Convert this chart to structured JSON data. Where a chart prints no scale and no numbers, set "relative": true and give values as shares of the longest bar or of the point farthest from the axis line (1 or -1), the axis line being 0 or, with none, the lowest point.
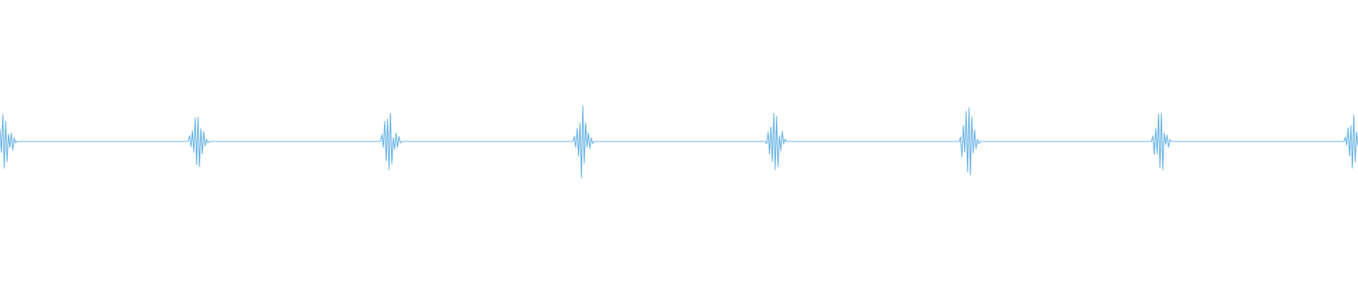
{
  "chart_data": {
    "type": "line",
    "relative": true,
    "color": "#5dade2",
    "categories": [
      null,
      null,
      null,
      null,
      null,
      null,
      null,
      null,
      null,
      null,
      null,
      null,
      null,
      null,
      null,
      null,
      null,
      null,
      null,
      null,
      null,
      null,
      null,
      null,
      null,
      null,
      null,
      null,
      null,
      null,
      null,
      null,
      null,
      null,
      null,
      null,
      null,
      null,
      null,
      null,
      null,
      null,
      null,
      null,
      null,
      null,
      null,
      null,
      null,
      null,
      null,
      null,
      null,
      null,
      null,
      null,
      null,
      null,
      null,
      null,
      null,
      null,
      null,
      null,
      null,
      null,
      null,
      null,
      null,
      null,
      null,
      null,
      null,
      null,
      null,
      null,
      null,
      null,
      null,
      null,
      null,
      null,
      null,
      null,
      null,
      null,
      null,
      null,
      null,
      null,
      null,
      null,
      null,
      null,
      null,
      null,
      null,
      null,
      null,
      null,
      null,
      null,
      null,
      null,
      null,
      null,
      null,
      null,
      null,
      null,
      null,
      null,
      null,
      null,
      null,
      null,
      null,
      null,
      null,
      null,
      null,
      null,
      null,
      null,
      null,
      null,
      null,
      null,
      null,
      null,
      null,
      null,
      null,
      null,
      null,
      null,
      null,
      null,
      null,
      null,
      null,
      null,
      null,
      null,
      null,
      null,
      null,
      null,
      null,
      null,
      null,
      null,
      null,
      null,
      null,
      null,
      null,
      null,
      null,
      null,
      null,
      null,
      null,
      null,
      null,
      null,
      null,
      null,
      null,
      null,
      null,
      null,
      null,
      null,
      null,
      null,
      null,
      null,
      null,
      null,
      null,
      null,
      null,
      null,
      null,
      null,
      null,
      null,
      null,
      null,
      null,
      null,
      null,
      null,
      null,
      null,
      null,
      null,
      null,
      null,
      null,
      null,
      null,
      null,
      null,
      null,
      null,
      null,
      null,
      null,
      null,
      null,
      null,
      null,
      null,
      null,
      null,
      null,
      null,
      null,
      null,
      null,
      null,
      null,
      null,
      null,
      null,
      null,
      null,
      null,
      null,
      null,
      null,
      null,
      null,
      null,
      null,
      null,
      null,
      null,
      null,
      null,
      null,
      null,
      null,
      null,
      null,
      null,
      null,
      null,
      null,
      null,
      null,
      null,
      null,
      null,
      null,
      null,
      null,
      null,
      null,
      null,
      null,
      null,
      null,
      null,
      null,
      null,
      null,
      null,
      null,
      null,
      null,
      null,
      null,
      null,
      null,
      null,
      null,
      null,
      null,
      null,
      null,
      null,
      null,
      null,
      null,
      null,
      null,
      null,
      null,
      null,
      null,
      null,
      null,
      null,
      null,
      null,
      null,
      null,
      null,
      null,
      null,
      null,
      null,
      null,
      null,
      null,
      null,
      null,
      null,
      null,
      null,
      null,
      null,
      null,
      null,
      null,
      null,
      null,
      null,
      null,
      null,
      null,
      null,
      null,
      null,
      null,
      null,
      null,
      null,
      null,
      null,
      null,
      null,
      null,
      null,
      null,
      null,
      null,
      null,
      null,
      null,
      null,
      null,
      null,
      null,
      null,
      null,
      null,
      null,
      null,
      null,
      null,
      null,
      null,
      null,
      null,
      null,
      null,
      null,
      null,
      null,
      null,
      null,
      null,
      null,
      null,
      null,
      null,
      null,
      null,
      null,
      null,
      null,
      null,
      null,
      null,
      null,
      null,
      null,
      null,
      null,
      null,
      null,
      null,
      null,
      null,
      null,
      null,
      null,
      null,
      null,
      null,
      null,
      null,
      null,
      null,
      null,
      null,
      null,
      null,
      null,
      null,
      null,
      null,
      null,
      null,
      null,
      null,
      null,
      null,
      null,
      null,
      null,
      null,
      null,
      null,
      null,
      null,
      null,
      null,
      null,
      null,
      null,
      null,
      null,
      null,
      null,
      null,
      null,
      null,
      null,
      null,
      null,
      null,
      null,
      null,
      null,
      null,
      null,
      null,
      null,
      null,
      null,
      null,
      null,
      null,
      null,
      null,
      null,
      null,
      null,
      null,
      null,
      null,
      null,
      null,
      null,
      null,
      null,
      null,
      null,
      null,
      null,
      null,
      null,
      null,
      null,
      null,
      null,
      null,
      null,
      null,
      null,
      null,
      null,
      null,
      null,
      null,
      null,
      null,
      null,
      null,
      null,
      null,
      null,
      null,
      null,
      null,
      null,
      null,
      null,
      null,
      null,
      null,
      null,
      null,
      null,
      null,
      null,
      null,
      null,
      null,
      null,
      null,
      null,
      null,
      null,
      null,
      null,
      null,
      null,
      null,
      null,
      null,
      null,
      null,
      null,
      null,
      null,
      null,
      null,
      null,
      null,
      null,
      null,
      null,
      null,
      null,
      null,
      null,
      null,
      null,
      null,
      null,
      null,
      null,
      null,
      null,
      null,
      null,
      null,
      null,
      null,
      null,
      null,
      null,
      null,
      null,
      null,
      null,
      null,
      null,
      null,
      null,
      null,
      null,
      null,
      null,
      null,
      null,
      null,
      null,
      null,
      null,
      null,
      null,
      null,
      null,
      null,
      null,
      null,
      null,
      null,
      null,
      null,
      null,
      null,
      null,
      null,
      null,
      null,
      null,
      null,
      null,
      null,
      null,
      null,
      null,
      null,
      null,
      null,
      null,
      null,
      null,
      null,
      null,
      null,
      null,
      null,
      null,
      null,
      null,
      null,
      null,
      null,
      null,
      null,
      null,
      null,
      null,
      null,
      null,
      null,
      null,
      null,
      null,
      null,
      null,
      null,
      null,
      null,
      null,
      null,
      null,
      null,
      null,
      null,
      null,
      null,
      null,
      null,
      null,
      null,
      null,
      null,
      null,
      null,
      null,
      null,
      null,
      null,
      null,
      null,
      null,
      null,
      null,
      null,
      null,
      null,
      null,
      null,
      null,
      null,
      null,
      null,
      null,
      null,
      null,
      null,
      null,
      null,
      null,
      null,
      null,
      null,
      null,
      null,
      null,
      null,
      null,
      null,
      null,
      null,
      null,
      null,
      null,
      null,
      null,
      null,
      null,
      null,
      null,
      null,
      null,
      null,
      null,
      null,
      null,
      null,
      null,
      null,
      null,
      null,
      null,
      null,
      null,
      null,
      null,
      null,
      null,
      null,
      null,
      null,
      null,
      null,
      null,
      null,
      null,
      null,
      null,
      null,
      null,
      null,
      null,
      null,
      null,
      null,
      null,
      null,
      null,
      null,
      null,
      null,
      null,
      null,
      null,
      null,
      null,
      null,
      null,
      null,
      null,
      null,
      null,
      null,
      null,
      null,
      null,
      null,
      null,
      null,
      null,
      null,
      null,
      null,
      null,
      null,
      null,
      null,
      null,
      null,
      null,
      null,
      null,
      null,
      null,
      null,
      null,
      null,
      null,
      null,
      null,
      null,
      null,
      null,
      null,
      null,
      null,
      null,
      null,
      null,
      null,
      null,
      null,
      null,
      null,
      null,
      null,
      null,
      null,
      null,
      null,
      null,
      null,
      null,
      null,
      null,
      null,
      null,
      null,
      null,
      null,
      null,
      null,
      null,
      null,
      null,
      null,
      null,
      null,
      null,
      null,
      null,
      null,
      null,
      null,
      null,
      null,
      null,
      null,
      null,
      null,
      null,
      null,
      null,
      null,
      null,
      null,
      null,
      null,
      null,
      null,
      null,
      null,
      null,
      null,
      null,
      null,
      null,
      null,
      null,
      null,
      null,
      null,
      null,
      null,
      null,
      null,
      null,
      null,
      null,
      null,
      null,
      null,
      null,
      null,
      null,
      null,
      null,
      null,
      null,
      null,
      null,
      null,
      null,
      null,
      null,
      null,
      null,
      null,
      null,
      null,
      null,
      null,
      null,
      null,
      null,
      null,
      null,
      null,
      null,
      null,
      null,
      null,
      null,
      null,
      null,
      null,
      null,
      null,
      null,
      null,
      null,
      null,
      null,
      null,
      null,
      null,
      null,
      null,
      null,
      null,
      null,
      null,
      null,
      null,
      null,
      null,
      null,
      null,
      null,
      null,
      null,
      null,
      null,
      null,
      null,
      null,
      null,
      null,
      null,
      null,
      null,
      null,
      null,
      null,
      null,
      null,
      null,
      null,
      null,
      null,
      null,
      null,
      null,
      null,
      null,
      null,
      null,
      null,
      null,
      null,
      null,
      null,
      null,
      null,
      null,
      null,
      null,
      null,
      null,
      null,
      null,
      null,
      null,
      null,
      null,
      null,
      null,
      null,
      null,
      null,
      null,
      null,
      null,
      null,
      null,
      null,
      null
    ],
    "values": [
      0.67,
      0.35,
      0.88,
      0.13,
      0.78,
      0.22,
      0.6,
      0.42,
      0.62,
      0.38,
      0.55,
      0.48,
      0.5,
      0.5,
      0.5,
      0.5,
      0.5,
      0.5,
      0.5,
      0.5,
      0.5,
      0.5,
      0.5,
      0.5,
      0.5,
      0.5,
      0.5,
      0.5,
      0.5,
      0.5,
      0.5,
      0.5,
      0.5,
      0.5,
      0.5,
      0.5,
      0.5,
      0.5,
      0.5,
      0.5,
      0.5,
      0.5,
      0.5,
      0.5,
      0.5,
      0.5,
      0.5,
      0.5,
      0.5,
      0.5,
      0.5,
      0.5,
      0.5,
      0.5,
      0.5,
      0.5,
      0.5,
      0.5,
      0.5,
      0.5,
      0.5,
      0.5,
      0.5,
      0.5,
      0.5,
      0.5,
      0.5,
      0.5,
      0.5,
      0.5,
      0.5,
      0.5,
      0.5,
      0.5,
      0.5,
      0.5,
      0.5,
      0.5,
      0.5,
      0.5,
      0.5,
      0.5,
      0.5,
      0.5,
      0.5,
      0.5,
      0.5,
      0.5,
      0.5,
      0.5,
      0.5,
      0.5,
      0.5,
      0.5,
      0.5,
      0.5,
      0.5,
      0.5,
      0.5,
      0.5,
      0.5,
      0.5,
      0.5,
      0.5,
      0.5,
      0.5,
      0.5,
      0.5,
      0.5,
      0.5,
      0.5,
      0.5,
      0.5,
      0.5,
      0.5,
      0.5,
      0.5,
      0.5,
      0.5,
      0.5,
      0.5,
      0.5,
      0.5,
      0.5,
      0.5,
      0.5,
      0.5,
      0.5,
      0.5,
      0.5,
      0.5,
      0.5,
      0.5,
      0.5,
      0.58,
      0.43,
      0.65,
      0.35,
      0.83,
      0.18,
      0.84,
      0.15,
      0.68,
      0.33,
      0.64,
      0.44,
      0.53,
      0.48,
      0.5,
      0.5,
      0.5,
      0.5,
      0.5,
      0.5,
      0.5,
      0.5,
      0.5,
      0.5,
      0.5,
      0.5,
      0.5,
      0.5,
      0.5,
      0.5,
      0.5,
      0.5,
      0.5,
      0.5,
      0.5,
      0.5,
      0.5,
      0.5,
      0.5,
      0.5,
      0.5,
      0.5,
      0.5,
      0.5,
      0.5,
      0.5,
      0.5,
      0.5,
      0.5,
      0.5,
      0.5,
      0.5,
      0.5,
      0.5,
      0.5,
      0.5,
      0.5,
      0.5,
      0.5,
      0.5,
      0.5,
      0.5,
      0.5,
      0.5,
      0.5,
      0.5,
      0.5,
      0.5,
      0.5,
      0.5,
      0.5,
      0.5,
      0.5,
      0.5,
      0.5,
      0.5,
      0.5,
      0.5,
      0.5,
      0.5,
      0.5,
      0.5,
      0.5,
      0.5,
      0.5,
      0.5,
      0.5,
      0.5,
      0.5,
      0.5,
      0.5,
      0.5,
      0.5,
      0.5,
      0.5,
      0.5,
      0.5,
      0.5,
      0.5,
      0.5,
      0.5,
      0.5,
      0.5,
      0.5,
      0.5,
      0.5,
      0.5,
      0.5,
      0.5,
      0.5,
      0.5,
      0.5,
      0.5,
      0.5,
      0.5,
      0.5,
      0.5,
      0.5,
      0.5,
      0.5,
      0.5,
      0.5,
      0.5,
      0.5,
      0.5,
      0.5,
      0.5,
      0.5,
      0.5,
      0.5,
      0.5,
      0.5,
      0.5,
      0.5,
      0.5,
      0.5,
      0.6,
      0.42,
      0.78,
      0.23,
      0.81,
      0.11,
      0.89,
      0.19,
      0.55,
      0.39,
      0.62,
      0.42,
      0.57,
      0.48,
      0.5,
      0.5,
      0.5,
      0.5,
      0.5,
      0.5,
      0.5,
      0.5,
      0.5,
      0.5,
      0.5,
      0.5,
      0.5,
      0.5,
      0.5,
      0.5,
      0.5,
      0.5,
      0.5,
      0.5,
      0.5,
      0.5,
      0.5,
      0.5,
      0.5,
      0.5,
      0.5,
      0.5,
      0.5,
      0.5,
      0.5,
      0.5,
      0.5,
      0.5,
      0.5,
      0.5,
      0.5,
      0.5,
      0.5,
      0.5,
      0.5,
      0.5,
      0.5,
      0.5,
      0.5,
      0.5,
      0.5,
      0.5,
      0.5,
      0.5,
      0.5,
      0.5,
      0.5,
      0.5,
      0.5,
      0.5,
      0.5,
      0.5,
      0.5,
      0.5,
      0.5,
      0.5,
      0.5,
      0.5,
      0.5,
      0.5,
      0.5,
      0.5,
      0.5,
      0.5,
      0.5,
      0.5,
      0.5,
      0.5,
      0.5,
      0.5,
      0.5,
      0.5,
      0.5,
      0.5,
      0.5,
      0.5,
      0.5,
      0.5,
      0.5,
      0.5,
      0.5,
      0.5,
      0.5,
      0.5,
      0.5,
      0.5,
      0.5,
      0.5,
      0.5,
      0.5,
      0.5,
      0.5,
      0.5,
      0.5,
      0.5,
      0.5,
      0.5,
      0.5,
      0.5,
      0.5,
      0.5,
      0.5,
      0.5,
      0.5,
      0.5,
      0.5,
      0.5,
      0.5,
      0.5,
      0.5,
      0.5,
      0.5,
      0.5,
      0.5,
      0.5,
      0.5,
      0.57,
      0.42,
      0.68,
      0.3,
      0.76,
      0,
      1,
      0.2,
      0.76,
      0.42,
      0.62,
      0.4,
      0.55,
      0.47,
      0.5,
      0.5,
      0.5,
      0.5,
      0.5,
      0.5,
      0.5,
      0.5,
      0.5,
      0.5,
      0.5,
      0.5,
      0.5,
      0.5,
      0.5,
      0.5,
      0.5,
      0.5,
      0.5,
      0.5,
      0.5,
      0.5,
      0.5,
      0.5,
      0.5,
      0.5,
      0.5,
      0.5,
      0.5,
      0.5,
      0.5,
      0.5,
      0.5,
      0.5,
      0.5,
      0.5,
      0.5,
      0.5,
      0.5,
      0.5,
      0.5,
      0.5,
      0.5,
      0.5,
      0.5,
      0.5,
      0.5,
      0.5,
      0.5,
      0.5,
      0.5,
      0.5,
      0.5,
      0.5,
      0.5,
      0.5,
      0.5,
      0.5,
      0.5,
      0.5,
      0.5,
      0.5,
      0.5,
      0.5,
      0.5,
      0.5,
      0.5,
      0.5,
      0.5,
      0.5,
      0.5,
      0.5,
      0.5,
      0.5,
      0.5,
      0.5,
      0.5,
      0.5,
      0.5,
      0.5,
      0.5,
      0.5,
      0.5,
      0.5,
      0.5,
      0.5,
      0.5,
      0.5,
      0.5,
      0.5,
      0.5,
      0.5,
      0.5,
      0.5,
      0.5,
      0.5,
      0.5,
      0.5,
      0.5,
      0.5,
      0.5,
      0.5,
      0.5,
      0.5,
      0.5,
      0.5,
      0.5,
      0.5,
      0.5,
      0.5,
      0.5,
      0.5,
      0.5,
      0.5,
      0.5,
      0.5,
      0.5,
      0.5,
      0.5,
      0.5,
      0.5,
      0.5,
      0.47,
      0.63,
      0.33,
      0.7,
      0.22,
      0.89,
      0.11,
      0.85,
      0.15,
      0.58,
      0.37,
      0.64,
      0.47,
      0.53,
      0.5,
      0.5,
      0.5,
      0.5,
      0.5,
      0.5,
      0.5,
      0.5,
      0.5,
      0.5,
      0.5,
      0.5,
      0.5,
      0.5,
      0.5,
      0.5,
      0.5,
      0.5,
      0.5,
      0.5,
      0.5,
      0.5,
      0.5,
      0.5,
      0.5,
      0.5,
      0.5,
      0.5,
      0.5,
      0.5,
      0.5,
      0.5,
      0.5,
      0.5,
      0.5,
      0.5,
      0.5,
      0.5,
      0.5,
      0.5,
      0.5,
      0.5,
      0.5,
      0.5,
      0.5,
      0.5,
      0.5,
      0.5,
      0.5,
      0.5,
      0.5,
      0.5,
      0.5,
      0.5,
      0.5,
      0.5,
      0.5,
      0.5,
      0.5,
      0.5,
      0.5,
      0.5,
      0.5,
      0.5,
      0.5,
      0.5,
      0.5,
      0.5,
      0.5,
      0.5,
      0.5,
      0.5,
      0.5,
      0.5,
      0.5,
      0.5,
      0.5,
      0.5,
      0.5,
      0.5,
      0.5,
      0.5,
      0.5,
      0.5,
      0.5,
      0.5,
      0.5,
      0.5,
      0.5,
      0.5,
      0.5,
      0.5,
      0.5,
      0.5,
      0.5,
      0.5,
      0.5,
      0.5,
      0.5,
      0.5,
      0.5,
      0.5,
      0.5,
      0.5,
      0.5,
      0.5,
      0.5,
      0.5,
      0.5,
      0.5,
      0.5,
      0.5,
      0.5,
      0.5,
      0.5,
      0.5,
      0.5,
      0.5,
      0.5,
      0.5,
      0.5,
      0.5,
      0.5,
      0.56,
      0.29,
      0.72,
      0.35,
      0.92,
      0.08,
      0.97,
      0.04,
      0.84,
      0.34,
      0.66,
      0.4,
      0.53,
      0.47,
      0.5,
      0.5,
      0.5,
      0.5,
      0.5,
      0.5,
      0.5,
      0.5,
      0.5,
      0.5,
      0.5,
      0.5,
      0.5,
      0.5,
      0.5,
      0.5,
      0.5,
      0.5,
      0.5,
      0.5,
      0.5,
      0.5,
      0.5,
      0.5,
      0.5,
      0.5,
      0.5,
      0.5,
      0.5,
      0.5,
      0.5,
      0.5,
      0.5,
      0.5,
      0.5,
      0.5,
      0.5,
      0.5,
      0.5,
      0.5,
      0.5,
      0.5,
      0.5,
      0.5,
      0.5,
      0.5,
      0.5,
      0.5,
      0.5,
      0.5,
      0.5,
      0.5,
      0.5,
      0.5,
      0.5,
      0.5,
      0.5,
      0.5,
      0.5,
      0.5,
      0.5,
      0.5,
      0.5,
      0.5,
      0.5,
      0.5,
      0.5,
      0.5,
      0.5,
      0.5,
      0.5,
      0.5,
      0.5,
      0.5,
      0.5,
      0.5,
      0.5,
      0.5,
      0.5,
      0.5,
      0.5,
      0.5,
      0.5,
      0.5,
      0.5,
      0.5,
      0.5,
      0.5,
      0.5,
      0.5,
      0.5,
      0.5,
      0.5,
      0.5,
      0.5,
      0.5,
      0.5,
      0.5,
      0.5,
      0.5,
      0.5,
      0.5,
      0.5,
      0.5,
      0.5,
      0.5,
      0.5,
      0.5,
      0.5,
      0.5,
      0.5,
      0.5,
      0.5,
      0.5,
      0.5,
      0.5,
      0.5,
      0.5,
      0.5,
      0.5,
      0.5,
      0.5,
      0.58,
      0.32,
      0.68,
      0.33,
      0.88,
      0.14,
      0.89,
      0.11,
      0.62,
      0.46,
      0.59,
      0.42,
      0.53,
      0.5,
      0.5,
      0.5,
      0.5,
      0.5,
      0.5,
      0.5,
      0.5,
      0.5,
      0.5,
      0.5,
      0.5,
      0.5,
      0.5,
      0.5,
      0.5,
      0.5,
      0.5,
      0.5,
      0.5,
      0.5,
      0.5,
      0.5,
      0.5,
      0.5,
      0.5,
      0.5,
      0.5,
      0.5,
      0.5,
      0.5,
      0.5,
      0.5,
      0.5,
      0.5,
      0.5,
      0.5,
      0.5,
      0.5,
      0.5,
      0.5,
      0.5,
      0.5,
      0.5,
      0.5,
      0.5,
      0.5,
      0.5,
      0.5,
      0.5,
      0.5,
      0.5,
      0.5,
      0.5,
      0.5,
      0.5,
      0.5,
      0.5,
      0.5,
      0.5,
      0.5,
      0.5,
      0.5,
      0.5,
      0.5,
      0.5,
      0.5,
      0.5,
      0.5,
      0.5,
      0.5,
      0.5,
      0.5,
      0.5,
      0.5,
      0.5,
      0.5,
      0.5,
      0.5,
      0.5,
      0.5,
      0.5,
      0.5,
      0.5,
      0.5,
      0.5,
      0.5,
      0.5,
      0.5,
      0.5,
      0.5,
      0.5,
      0.5,
      0.5,
      0.5,
      0.5,
      0.5,
      0.5,
      0.5,
      0.5,
      0.5,
      0.5,
      0.5,
      0.5,
      0.5,
      0.5,
      0.5,
      0.5,
      0.5,
      0.5,
      0.5,
      0.5,
      0.5,
      0.5,
      0.5,
      0.5,
      0.5,
      0.5,
      0.5,
      0.5,
      0.5,
      0.5,
      0.5,
      0.56,
      0.45,
      0.69,
      0.3,
      0.72,
      0.13,
      0.87,
      0.22,
      0.63,
      0.44
    ]
  }
}
